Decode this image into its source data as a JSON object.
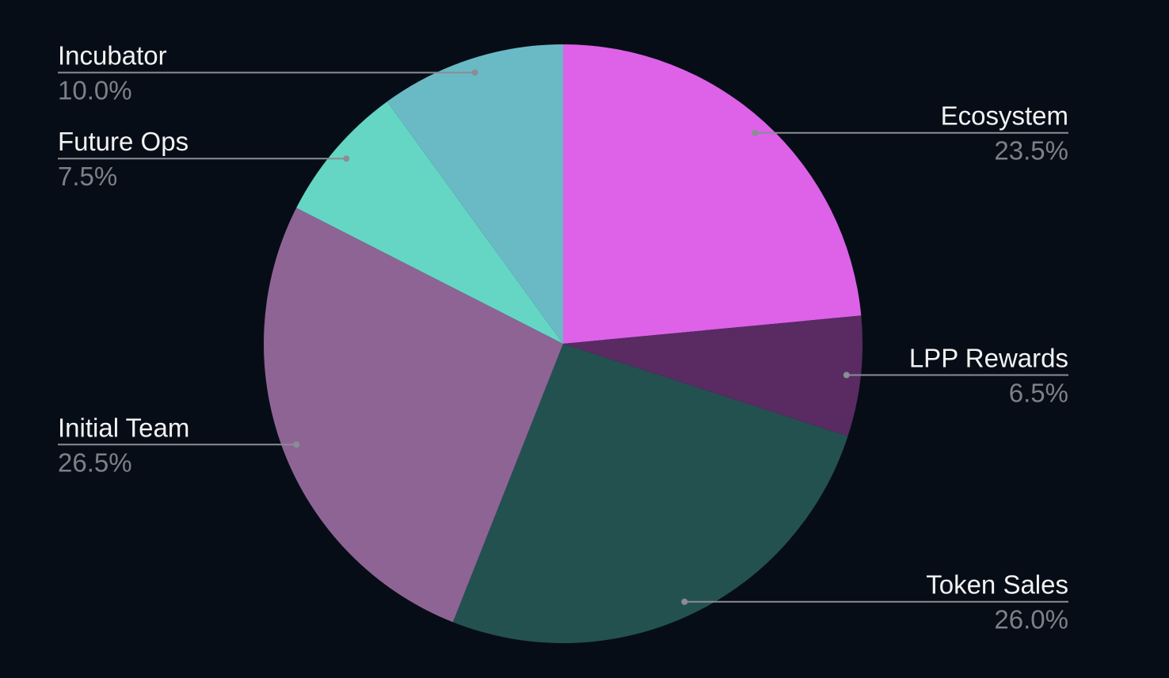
{
  "chart_data": {
    "type": "pie",
    "categories": [
      "Ecosystem",
      "LPP Rewards",
      "Token Sales",
      "Initial Team",
      "Future Ops",
      "Incubator"
    ],
    "values": [
      23.5,
      6.5,
      26.0,
      26.5,
      7.5,
      10.0
    ],
    "value_labels": [
      "23.5%",
      "6.5%",
      "26.0%",
      "26.5%",
      "7.5%",
      "10.0%"
    ],
    "colors": [
      "#dd62e8",
      "#5a2a63",
      "#235150",
      "#8e6495",
      "#65d6c4",
      "#6abac5"
    ]
  }
}
